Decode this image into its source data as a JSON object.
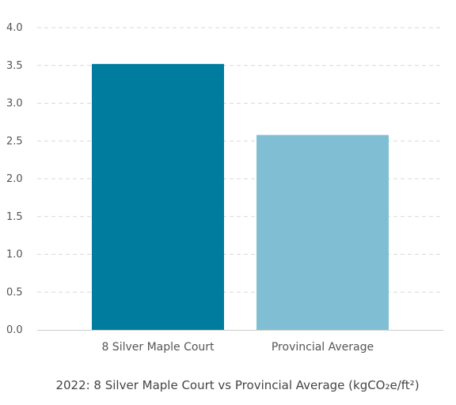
{
  "chart_data": {
    "type": "bar",
    "categories": [
      "8 Silver Maple Court",
      "Provincial Average"
    ],
    "values": [
      3.52,
      2.58
    ],
    "colors": [
      "#007c9e",
      "#80bfd3"
    ],
    "title": "2022: 8 Silver Maple Court vs Provincial Average (kgCO₂e/ft²)",
    "xlabel": "",
    "ylabel": "",
    "ylim": [
      0,
      4
    ],
    "yticks": [
      "0.0",
      "0.5",
      "1.0",
      "1.5",
      "2.0",
      "2.5",
      "3.0",
      "3.5",
      "4.0"
    ],
    "grid": true,
    "grid_style": "dashed-horizontal",
    "legend": "none"
  }
}
